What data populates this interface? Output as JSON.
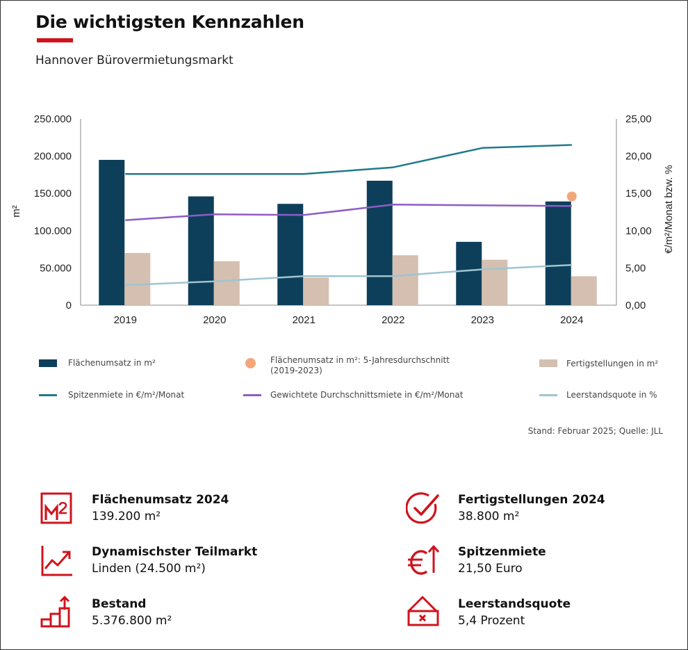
{
  "header": {
    "title": "Die wichtigsten Kennzahlen",
    "subtitle": "Hannover Bürovermietungsmarkt"
  },
  "colors": {
    "accent": "#d0131c",
    "flaechenumsatz": "#0e3f5a",
    "fertigstellungen": "#d4bfb0",
    "spitzenmiete": "#1f7a8c",
    "durchschnittsmiete": "#8e5cc5",
    "leerstand": "#9fc4d0",
    "avg_dot": "#f3a679"
  },
  "chart_data": {
    "type": "bar",
    "categories": [
      "2019",
      "2020",
      "2021",
      "2022",
      "2023",
      "2024"
    ],
    "ylabel": "m²",
    "y2label": "€/m²/Monat bzw. %",
    "ylim": [
      0,
      250000
    ],
    "y2lim": [
      0,
      25
    ],
    "yticks": [
      "0",
      "50.000",
      "100.000",
      "150.000",
      "200.000",
      "250.000"
    ],
    "y2ticks": [
      "0,00",
      "5,00",
      "10,00",
      "15,00",
      "20,00",
      "25,00"
    ],
    "grid": false,
    "series": [
      {
        "name": "Flächenumsatz in m²",
        "kind": "bar",
        "axis": "left",
        "values": [
          195000,
          146000,
          136000,
          167000,
          85000,
          139200
        ]
      },
      {
        "name": "Fertigstellungen in m²",
        "kind": "bar",
        "axis": "left",
        "values": [
          70000,
          59000,
          37000,
          67000,
          61000,
          38800
        ]
      },
      {
        "name": "Spitzenmiete in €/m²/Monat",
        "kind": "line",
        "axis": "right",
        "values": [
          17.6,
          17.6,
          17.6,
          18.5,
          21.1,
          21.5
        ]
      },
      {
        "name": "Gewichtete Durchschnittsmiete in €/m²/Monat",
        "kind": "line",
        "axis": "right",
        "values": [
          11.4,
          12.2,
          12.1,
          13.5,
          13.4,
          13.3
        ]
      },
      {
        "name": "Leerstandsquote in %",
        "kind": "line",
        "axis": "right",
        "values": [
          2.7,
          3.2,
          3.9,
          3.9,
          4.8,
          5.4
        ]
      },
      {
        "name": "Flächenumsatz in m²: 5-Jahresdurchschnitt (2019-2023)",
        "kind": "point",
        "axis": "left",
        "category": "2024",
        "value": 146000
      }
    ]
  },
  "legend": [
    {
      "label": "Flächenumsatz in m²",
      "swatch": "bar",
      "color_key": "flaechenumsatz"
    },
    {
      "label": "Flächenumsatz in m²: 5-Jahresdurchschnitt",
      "label2": "(2019-2023)",
      "swatch": "dot",
      "color_key": "avg_dot"
    },
    {
      "label": "Fertigstellungen in m²",
      "swatch": "bar",
      "color_key": "fertigstellungen"
    },
    {
      "label": "Spitzenmiete in €/m²/Monat",
      "swatch": "line",
      "color_key": "spitzenmiete"
    },
    {
      "label": "Gewichtete Durchschnittsmiete in €/m²/Monat",
      "swatch": "line",
      "color_key": "durchschnittsmiete"
    },
    {
      "label": "Leerstandsquote in %",
      "swatch": "line",
      "color_key": "leerstand"
    }
  ],
  "source": "Stand: Februar 2025; Quelle: JLL",
  "kpis": [
    {
      "icon": "m2-icon",
      "label": "Flächenumsatz 2024",
      "value": "139.200 m²"
    },
    {
      "icon": "checkmark-circle-icon",
      "label": "Fertigstellungen 2024",
      "value": "38.800 m²"
    },
    {
      "icon": "trend-up-chart-icon",
      "label": "Dynamischster Teilmarkt",
      "value": "Linden (24.500 m²)"
    },
    {
      "icon": "euro-arrow-up-icon",
      "label": "Spitzenmiete",
      "value": "21,50 Euro"
    },
    {
      "icon": "stepped-bars-arrow-icon",
      "label": "Bestand",
      "value": "5.376.800 m²"
    },
    {
      "icon": "vacant-sign-icon",
      "label": "Leerstandsquote",
      "value": "5,4 Prozent"
    }
  ]
}
